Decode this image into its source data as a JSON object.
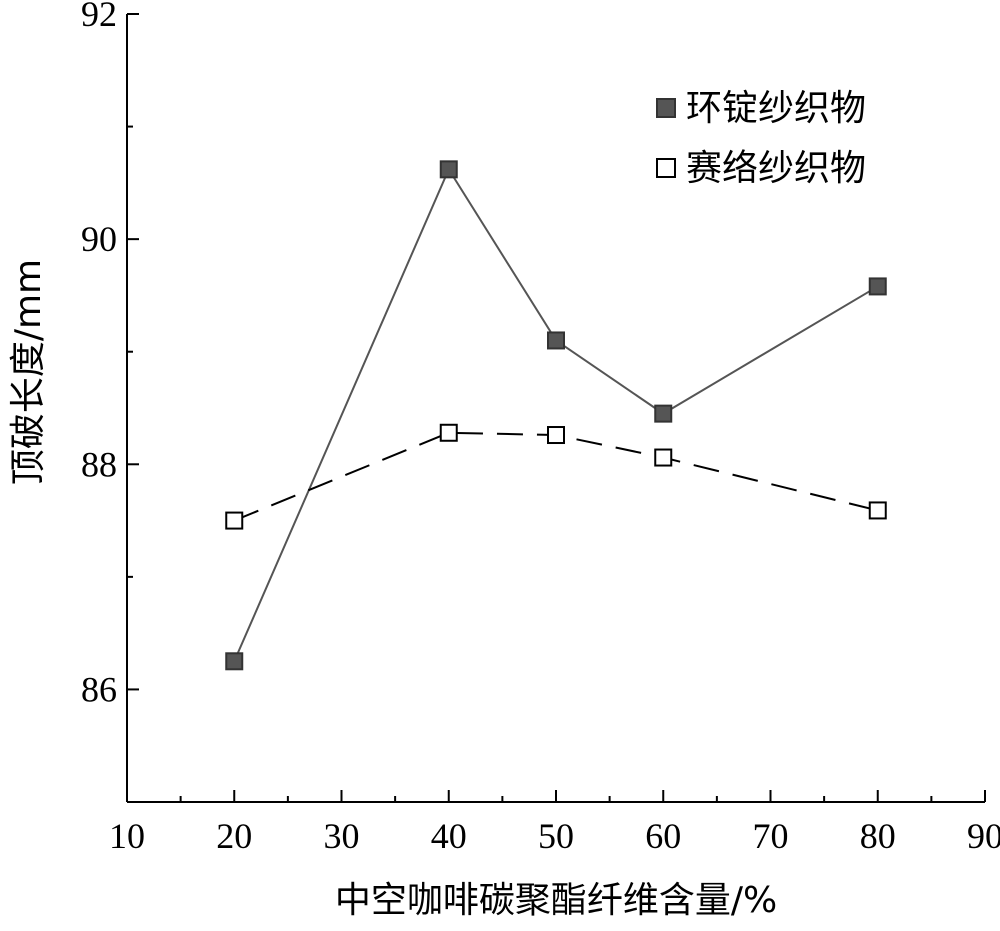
{
  "chart_data": {
    "type": "line",
    "title": "",
    "xlabel": "中空咖啡碳聚酯纤维含量/%",
    "ylabel": "顶破长度/mm",
    "xlim": [
      10,
      90
    ],
    "ylim": [
      85,
      92
    ],
    "x_ticks": [
      10,
      20,
      30,
      40,
      50,
      60,
      70,
      80,
      90
    ],
    "y_ticks": [
      86,
      88,
      90,
      92
    ],
    "x": [
      20,
      40,
      50,
      60,
      80
    ],
    "series": [
      {
        "name": "环锭纱织物",
        "values": [
          86.25,
          90.62,
          89.1,
          88.45,
          89.58
        ],
        "color": "#555555",
        "marker": "filled-square",
        "line": "solid"
      },
      {
        "name": "赛络纱织物",
        "values": [
          87.5,
          88.28,
          88.26,
          88.06,
          87.59
        ],
        "color": "#000000",
        "marker": "open-square",
        "line": "dashed"
      }
    ],
    "legend_position": "top-right",
    "grid": false
  }
}
